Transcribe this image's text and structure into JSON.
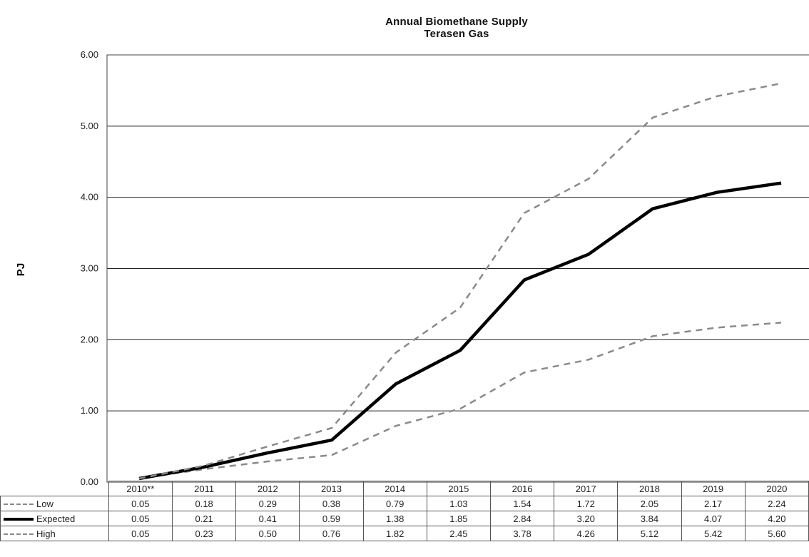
{
  "chart_data": {
    "type": "line",
    "title": "Annual Biomethane Supply",
    "subtitle": "Terasen Gas",
    "ylabel": "PJ",
    "xlabel": "",
    "ylim": [
      0,
      6
    ],
    "yticks": [
      "0.00",
      "1.00",
      "2.00",
      "3.00",
      "4.00",
      "5.00",
      "6.00"
    ],
    "grid": true,
    "categories": [
      "2010**",
      "2011",
      "2012",
      "2013",
      "2014",
      "2015",
      "2016",
      "2017",
      "2018",
      "2019",
      "2020"
    ],
    "series": [
      {
        "name": "Low",
        "style": "dashed",
        "color": "#8a8a8a",
        "values": [
          0.05,
          0.18,
          0.29,
          0.38,
          0.79,
          1.03,
          1.54,
          1.72,
          2.05,
          2.17,
          2.24
        ],
        "labels": [
          "0.05",
          "0.18",
          "0.29",
          "0.38",
          "0.79",
          "1.03",
          "1.54",
          "1.72",
          "2.05",
          "2.17",
          "2.24"
        ]
      },
      {
        "name": "Expected",
        "style": "solid",
        "color": "#000000",
        "values": [
          0.05,
          0.21,
          0.41,
          0.59,
          1.38,
          1.85,
          2.84,
          3.2,
          3.84,
          4.07,
          4.2
        ],
        "labels": [
          "0.05",
          "0.21",
          "0.41",
          "0.59",
          "1.38",
          "1.85",
          "2.84",
          "3.20",
          "3.84",
          "4.07",
          "4.20"
        ]
      },
      {
        "name": "High",
        "style": "dashed",
        "color": "#8a8a8a",
        "values": [
          0.05,
          0.23,
          0.5,
          0.76,
          1.82,
          2.45,
          3.78,
          4.26,
          5.12,
          5.42,
          5.6
        ],
        "labels": [
          "0.05",
          "0.23",
          "0.50",
          "0.76",
          "1.82",
          "2.45",
          "3.78",
          "4.26",
          "5.12",
          "5.42",
          "5.60"
        ]
      }
    ],
    "legend": "data-table-bottom"
  }
}
